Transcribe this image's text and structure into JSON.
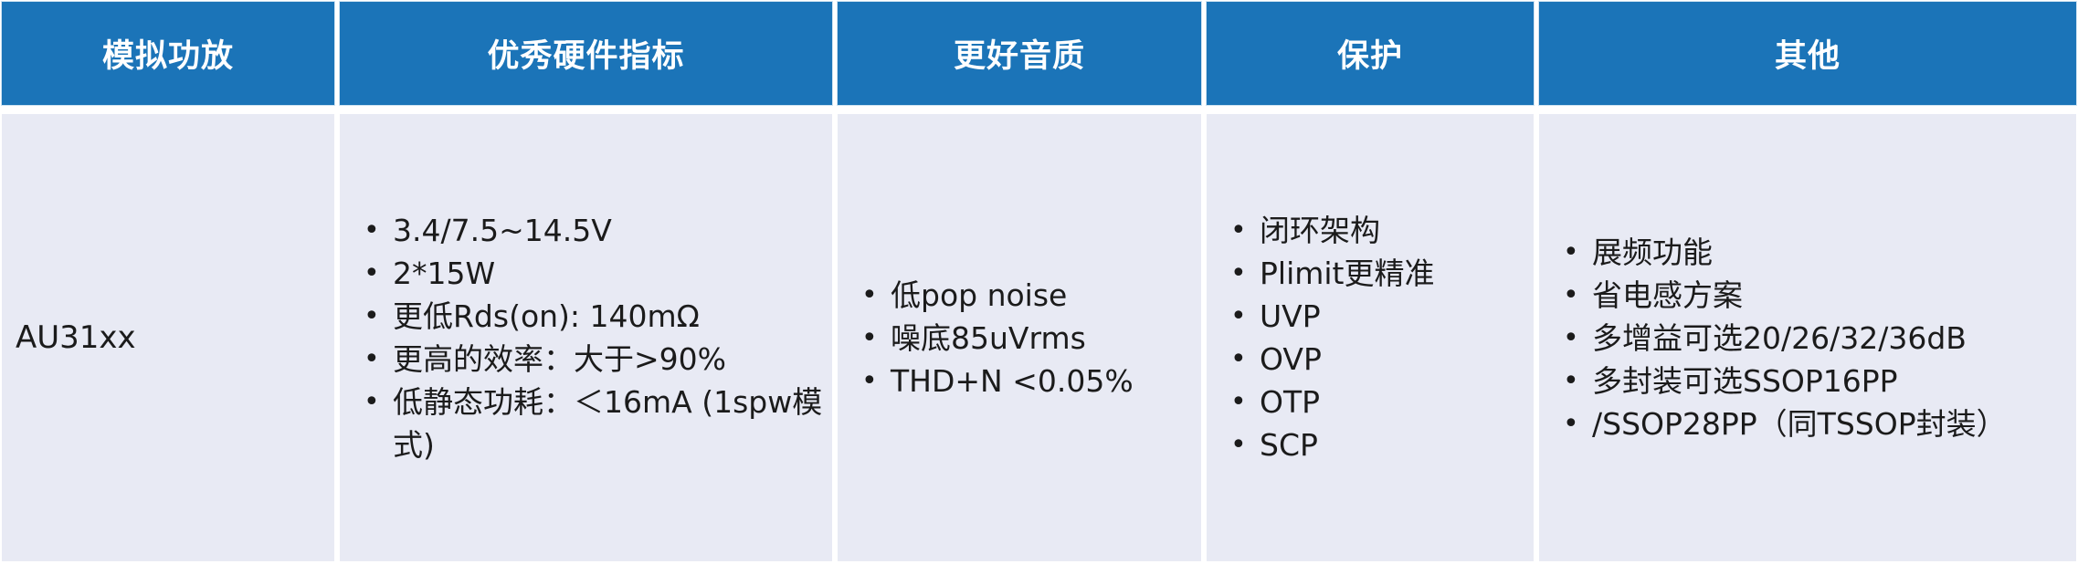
{
  "table": {
    "headers": [
      "模拟功放",
      "优秀硬件指标",
      "更好音质",
      "保护",
      "其他"
    ],
    "row": {
      "product": "AU31xx",
      "hardware_specs": [
        "3.4/7.5~14.5V",
        "2*15W",
        "更低Rds(on): 140mΩ",
        "更高的效率：大于>90%",
        "低静态功耗：＜16mA (1spw模式)"
      ],
      "audio_quality": [
        "低pop noise",
        "噪底85uVrms",
        "THD+N <0.05%"
      ],
      "protection": [
        "闭环架构",
        "Plimit更精准",
        "UVP",
        "OVP",
        "OTP",
        "SCP"
      ],
      "others": [
        "展频功能",
        "省电感方案",
        "多增益可选20/26/32/36dB",
        "多封装可选SSOP16PP",
        "/SSOP28PP（同TSSOP封装）"
      ]
    },
    "colors": {
      "header_bg": "#1b74b8",
      "header_text": "#ffffff",
      "body_bg": "#e8eaf4",
      "body_text": "#1b1b1b"
    }
  }
}
